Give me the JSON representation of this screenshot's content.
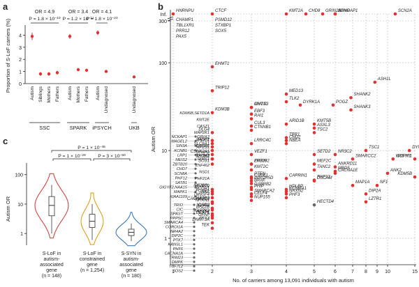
{
  "chart_data": [
    {
      "panel": "a",
      "type": "scatter",
      "ylabel": "Proportion of S-LoF carriers (%)",
      "yticks": [
        "0",
        "1",
        "2",
        "3",
        "4"
      ],
      "ylim": [
        0,
        4.6
      ],
      "groups": [
        {
          "name": "SSC",
          "or": "OR = 4.9",
          "p": "P = 1.8 × 10^-10",
          "points": [
            {
              "label": "Autism",
              "value": 3.9,
              "ci": [
                3.6,
                4.2
              ]
            },
            {
              "label": "Siblings",
              "value": 0.8,
              "ci": [
                0.65,
                0.95
              ]
            },
            {
              "label": "Mothers",
              "value": 0.8,
              "ci": [
                0.65,
                0.95
              ]
            },
            {
              "label": "Fathers",
              "value": 0.9,
              "ci": [
                0.75,
                1.05
              ]
            }
          ]
        },
        {
          "name": "SPARK",
          "or": "OR = 3.4",
          "p": "P = 1.2 × 10^-11",
          "points": [
            {
              "label": "Autism",
              "value": 3.9,
              "ci": [
                3.7,
                4.1
              ]
            },
            {
              "label": "Mothers",
              "value": 1.15,
              "ci": [
                1.05,
                1.25
              ]
            },
            {
              "label": "Fathers",
              "value": 1.1,
              "ci": [
                1.0,
                1.2
              ]
            }
          ]
        },
        {
          "name": "iPSYCH",
          "or": "OR = 4.1",
          "p": "P = 1.8 × 10^-23",
          "points": [
            {
              "label": "Autism",
              "value": 4.2,
              "ci": [
                4.0,
                4.4
              ]
            },
            {
              "label": "Undiagnosed",
              "value": 1.0,
              "ci": [
                0.95,
                1.05
              ]
            }
          ]
        },
        {
          "name": "UKB",
          "or": "",
          "p": "",
          "points": [
            {
              "label": "Undiagnosed",
              "value": 0.55,
              "ci": [
                0.52,
                0.58
              ]
            }
          ]
        }
      ]
    },
    {
      "panel": "b",
      "type": "scatter",
      "xlabel": "No. of carriers among 13,091 individuals with autism",
      "ylabel": "Autism OR",
      "xticks": [
        "1",
        "2",
        "3",
        "4",
        "5",
        "6",
        "7",
        "8",
        "9",
        "10",
        "15"
      ],
      "yticks": [
        "1",
        "10",
        "100",
        "300"
      ],
      "inf_label": "Inf.",
      "points": [
        {
          "gene": "HNRNPU",
          "x": 1,
          "y": "Inf"
        },
        {
          "gene": "CTCF",
          "x": 2,
          "y": "Inf"
        },
        {
          "gene": "KMT2A",
          "x": 4,
          "y": "Inf"
        },
        {
          "gene": "CHD8",
          "x": 4.7,
          "y": "Inf"
        },
        {
          "gene": "GRIN2B",
          "x": 5.4,
          "y": "Inf"
        },
        {
          "gene": "SYNGAP1",
          "x": 6,
          "y": "Inf"
        },
        {
          "gene": "SCN2A",
          "x": 11.4,
          "y": "Inf"
        },
        {
          "gene": "ADNP",
          "x": 6,
          "y": "Inf"
        },
        {
          "gene": "ASH1L",
          "x": 8.8,
          "y": 60
        },
        {
          "gene": "EHMT1",
          "x": 2,
          "y": 90
        },
        {
          "gene": "TRIP12",
          "x": 2,
          "y": 48
        },
        {
          "gene": "MED13",
          "x": 4,
          "y": 44
        },
        {
          "gene": "TLK2",
          "x": 4,
          "y": 36
        },
        {
          "gene": "DYRK1A",
          "x": 4.5,
          "y": 33
        },
        {
          "gene": "POGZ",
          "x": 5.9,
          "y": 33
        },
        {
          "gene": "SHANK2",
          "x": 6.9,
          "y": 40
        },
        {
          "gene": "SHANK3",
          "x": 6.9,
          "y": 29
        },
        {
          "gene": "KDM3B",
          "x": 2,
          "y": 27
        },
        {
          "gene": "MYT1L",
          "x": 3,
          "y": 31
        },
        {
          "gene": "CNOT3",
          "x": 3,
          "y": 31
        },
        {
          "gene": "EBF3",
          "x": 3,
          "y": 26
        },
        {
          "gene": "RAI1",
          "x": 3,
          "y": 23
        },
        {
          "gene": "KMT5B",
          "x": 5,
          "y": 20
        },
        {
          "gene": "DLG4",
          "x": 2,
          "y": 16
        },
        {
          "gene": "CUL3",
          "x": 3,
          "y": 19
        },
        {
          "gene": "ARID1B",
          "x": 4,
          "y": 20
        },
        {
          "gene": "ASXL3",
          "x": 5,
          "y": 18
        },
        {
          "gene": "CTNNB1",
          "x": 3,
          "y": 17
        },
        {
          "gene": "TSC2",
          "x": 5,
          "y": 16
        },
        {
          "gene": "TBR1",
          "x": 4,
          "y": 14
        },
        {
          "gene": "GRIA2",
          "x": 2,
          "y": 13
        },
        {
          "gene": "AHDC1",
          "x": 2,
          "y": 12
        },
        {
          "gene": "CHD2",
          "x": 4,
          "y": 13
        },
        {
          "gene": "NBEA",
          "x": 4,
          "y": 12
        },
        {
          "gene": "LRRC4C",
          "x": 3,
          "y": 12
        },
        {
          "gene": "SLC6A1",
          "x": 2,
          "y": 11
        },
        {
          "gene": "TSC1",
          "x": 8,
          "y": 10
        },
        {
          "gene": "DYNC1H1",
          "x": 14,
          "y": 10
        },
        {
          "gene": "VEZF1",
          "x": 3,
          "y": 9
        },
        {
          "gene": "SETD2",
          "x": 5,
          "y": 9
        },
        {
          "gene": "NR3C2",
          "x": 6,
          "y": 9
        },
        {
          "gene": "SMARCC2",
          "x": 7,
          "y": 8
        },
        {
          "gene": "WDFY3",
          "x": 11,
          "y": 8
        },
        {
          "gene": "GIGYF1",
          "x": 15,
          "y": 8
        },
        {
          "gene": "AP2S1",
          "x": 2,
          "y": 10
        },
        {
          "gene": "CSNK2A1",
          "x": 2,
          "y": 9
        },
        {
          "gene": "TAOK1",
          "x": 2,
          "y": 8
        },
        {
          "gene": "BRSK2",
          "x": 2,
          "y": 8
        },
        {
          "gene": "SKI",
          "x": 2,
          "y": 8
        },
        {
          "gene": "SOS1",
          "x": 2,
          "y": 7
        },
        {
          "gene": "ZNF292",
          "x": 3,
          "y": 7
        },
        {
          "gene": "EP300",
          "x": 3,
          "y": 7
        },
        {
          "gene": "MEF2C",
          "x": 5,
          "y": 7
        },
        {
          "gene": "ANKRD11",
          "x": 6,
          "y": 6.5
        },
        {
          "gene": "KMT2C",
          "x": 3,
          "y": 6
        },
        {
          "gene": "TANC2",
          "x": 5,
          "y": 6
        },
        {
          "gene": "MBD5",
          "x": 6,
          "y": 5.8
        },
        {
          "gene": "CACNA1E",
          "x": 6,
          "y": 5.5
        },
        {
          "gene": "ANK2",
          "x": 10,
          "y": 5.5
        },
        {
          "gene": "KDM5B",
          "x": 15,
          "y": 5
        },
        {
          "gene": "PTEN",
          "x": 3,
          "y": 5
        },
        {
          "gene": "CSDE1",
          "x": 3,
          "y": 4.8
        },
        {
          "gene": "PPP2R5D",
          "x": 3,
          "y": 4.5
        },
        {
          "gene": "CAPRIN1",
          "x": 4,
          "y": 4.8
        },
        {
          "gene": "DSCAM",
          "x": 5,
          "y": 4.5
        },
        {
          "gene": "PHF12",
          "x": 5,
          "y": 4.6
        },
        {
          "gene": "BRAF",
          "x": 3,
          "y": 4.2
        },
        {
          "gene": "MAP1A",
          "x": 7,
          "y": 4
        },
        {
          "gene": "NF1",
          "x": 9,
          "y": 4
        },
        {
          "gene": "GABRB2",
          "x": 3,
          "y": 3.8
        },
        {
          "gene": "PHIP",
          "x": 3,
          "y": 3.6
        },
        {
          "gene": "HDLBP",
          "x": 4,
          "y": 3.6
        },
        {
          "gene": "KCNMA1",
          "x": 4,
          "y": 3.4
        },
        {
          "gene": "DIP2A",
          "x": 8,
          "y": 3.2
        },
        {
          "gene": "HIVEP2",
          "x": 2,
          "y": 3.6
        },
        {
          "gene": "NCOA1",
          "x": 2,
          "y": 3.4
        },
        {
          "gene": "FOXP1",
          "x": 2,
          "y": 3.2
        },
        {
          "gene": "SMARCA2",
          "x": 3,
          "y": 3.2
        },
        {
          "gene": "CELF4",
          "x": 3,
          "y": 3
        },
        {
          "gene": "NRXN2",
          "x": 4,
          "y": 3.2
        },
        {
          "gene": "PHF3",
          "x": 4,
          "y": 2.9
        },
        {
          "gene": "NUP155",
          "x": 3,
          "y": 2.7
        },
        {
          "gene": "LZTR1",
          "x": 8,
          "y": 2.6
        },
        {
          "gene": "HECTD4",
          "x": 5,
          "y": 2.4
        },
        {
          "gene": "TM9SF4",
          "x": 2,
          "y": 2.9
        },
        {
          "gene": "CACNA2D3",
          "x": 2,
          "y": 2.6
        },
        {
          "gene": "CHD3",
          "x": 2,
          "y": 2.2
        },
        {
          "gene": "BAZ2B",
          "x": 2,
          "y": 2.1
        },
        {
          "gene": "MAP2K2",
          "x": 2,
          "y": 1.9
        },
        {
          "gene": "DEAF1",
          "x": 2,
          "y": 1.8
        },
        {
          "gene": "GFAP",
          "x": 2,
          "y": 1.7
        },
        {
          "gene": "DNMT3A",
          "x": 2,
          "y": 1.5
        },
        {
          "gene": "TEK",
          "x": 2,
          "y": 1.3
        },
        {
          "gene": "NRXN1",
          "x": 2,
          "y": 2.5
        }
      ],
      "gene_label_groups": {
        "inf_col1_extra": [
          "CHAMP1",
          "TBL1XR1",
          "PRR12",
          "PAX5"
        ],
        "inf_col2_extra": [
          "PSMD12",
          "STXBP1",
          "SOX5"
        ],
        "left_column": [
          "NCKAP1",
          "MAGEL2",
          "SIN3A",
          "KCNB1",
          "LRP1",
          "MEIS2",
          "ZBTB20",
          "CHD7",
          "SCN8A",
          "PHF12",
          "SATB1",
          "GIGYF2,NAA15",
          "MAPK1",
          "KIAA1109"
        ],
        "left_lower_column": [
          "TRIO",
          "CIC",
          "SPAST",
          "PPP5C",
          "SMARCA4",
          "COROI1A",
          "NR4A2",
          "DIP2C",
          "PTK7",
          "KANSL1",
          "PHF6",
          "CACNA1A",
          "TRIM23",
          "DMPK",
          "TCF7L2",
          "SOS2"
        ],
        "second_lower_column": [
          "KDM6B,SETD1A",
          "KMT2E",
          "CASZ1",
          "MAP2K1",
          "TAOK2",
          "ERERE",
          "SYNPO",
          "RIMS1",
          "ZNF462",
          "NSD1",
          "PHF21A",
          "IRF2BPL",
          "WAC",
          "GABRB3",
          "NLGN2",
          "AUTS2",
          "RFX3"
        ]
      }
    },
    {
      "panel": "c",
      "type": "violin",
      "ylabel": "Autism OR",
      "yticks": [
        "1",
        "10",
        "100"
      ],
      "ylim_log": [
        0.4,
        200
      ],
      "categories": [
        {
          "label": [
            "S-LoF in",
            "autism-",
            "associated",
            "gene"
          ],
          "n": "(n = 148)",
          "color": "#d94343",
          "median": 9,
          "q1": 4,
          "q3": 18,
          "lo": 1,
          "hi": 45
        },
        {
          "label": [
            "S-LoF in",
            "constrained",
            "gene"
          ],
          "n": "(n = 1,254)",
          "color": "#e0a019",
          "median": 2.6,
          "q1": 1.6,
          "q3": 4.5,
          "lo": 0.6,
          "hi": 10
        },
        {
          "label": [
            "S-SYN in",
            "autism-",
            "associated",
            "gene"
          ],
          "n": "(n = 180)",
          "color": "#3f79b8",
          "median": 1.1,
          "q1": 0.85,
          "q3": 1.4,
          "lo": 0.55,
          "hi": 2.2
        }
      ],
      "comparisons": [
        {
          "from": 0,
          "to": 2,
          "p": "P = 1 × 10^-46"
        },
        {
          "from": 0,
          "to": 1,
          "p": "P = 1 × 10^-29"
        },
        {
          "from": 1,
          "to": 2,
          "p": "P = 3 × 10^-50"
        }
      ]
    }
  ],
  "panel_letters": [
    "a",
    "b",
    "c"
  ],
  "colors": {
    "red": "#e03232",
    "grey": "#666666",
    "dark": "#222222"
  }
}
